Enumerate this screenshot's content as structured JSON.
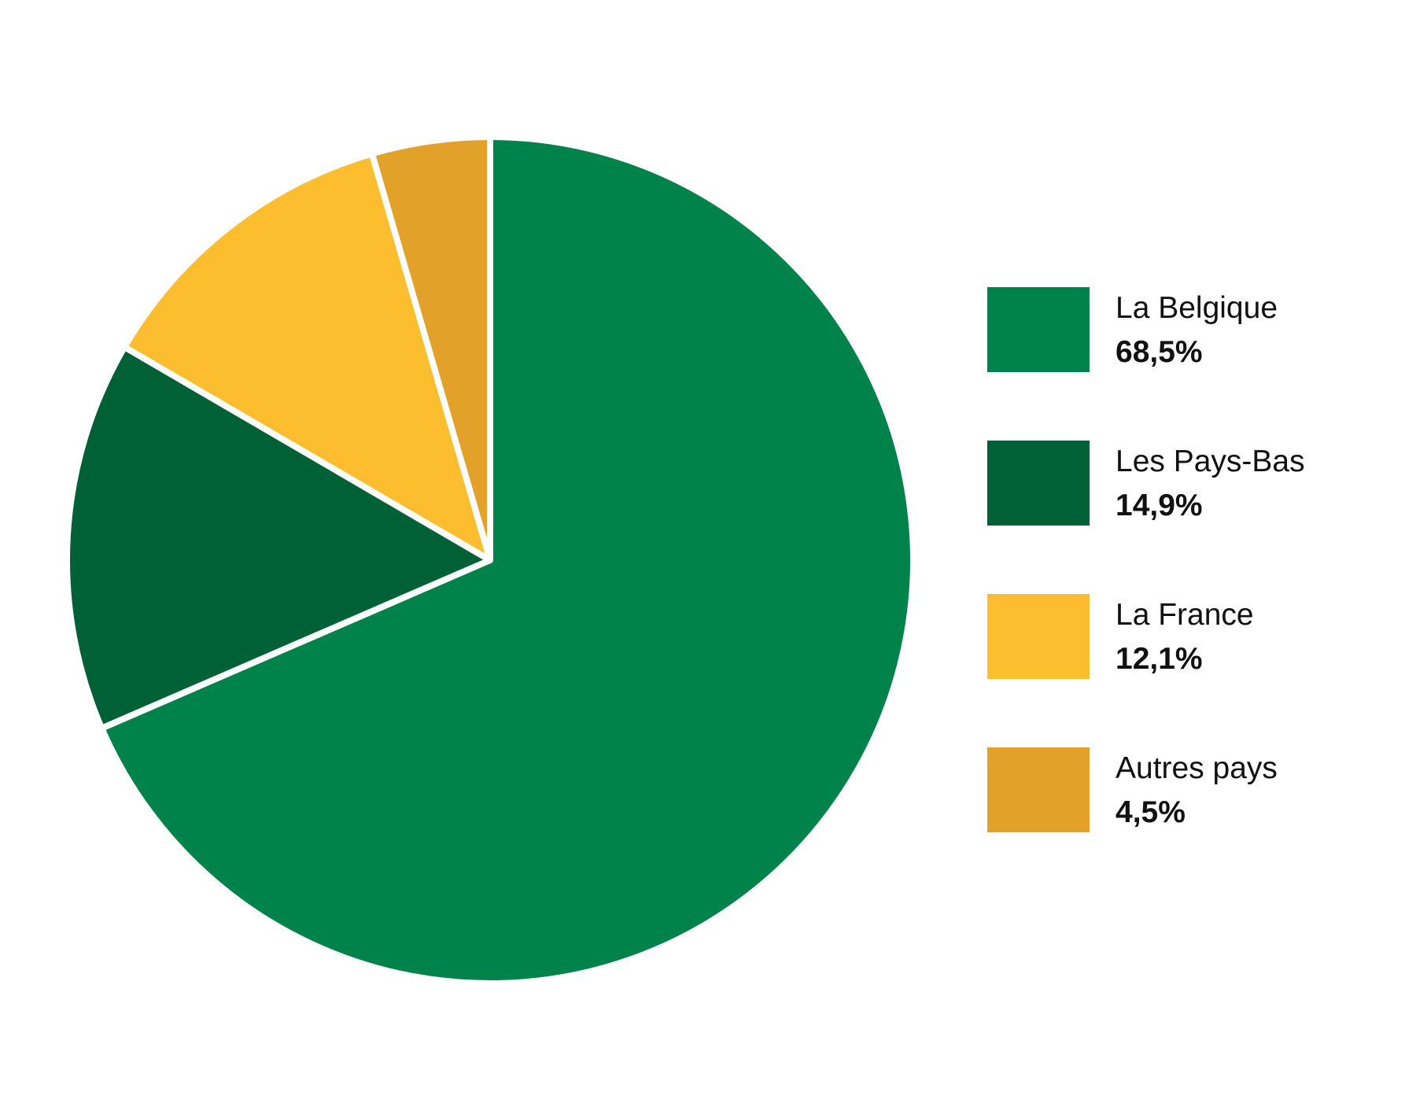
{
  "chart_data": {
    "type": "pie",
    "start_angle": "12 o'clock",
    "direction": "clockwise",
    "legend_position": "right",
    "slices": [
      {
        "label": "La Belgique",
        "value": 68.5,
        "value_label": "68,5%",
        "color": "#00834b"
      },
      {
        "label": "Les Pays-Bas",
        "value": 14.9,
        "value_label": "14,9%",
        "color": "#006137"
      },
      {
        "label": "La France",
        "value": 12.1,
        "value_label": "12,1%",
        "color": "#fcbd2f"
      },
      {
        "label": "Autres pays",
        "value": 4.5,
        "value_label": "4,5%",
        "color": "#e2a128"
      }
    ]
  }
}
